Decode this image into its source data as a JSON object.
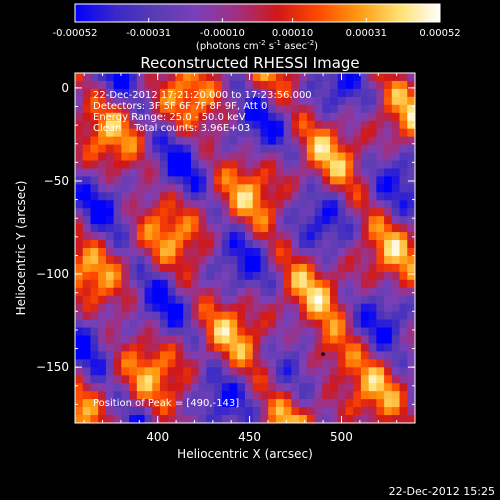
{
  "colorbar": {
    "ticks": [
      "-0.00052",
      "-0.00031",
      "-0.00010",
      "0.00010",
      "0.00031",
      "0.00052"
    ],
    "units_prefix": "(photons cm",
    "units_exp1": "-2",
    "units_mid": " s",
    "units_exp2": "-1",
    "units_mid2": " asec",
    "units_exp3": "-2",
    "units_suffix": ")",
    "colors": [
      "#0000ff",
      "#3a28c8",
      "#5a3cb4",
      "#7a40b8",
      "#a03080",
      "#d01818",
      "#ff4a00",
      "#ff9a10",
      "#ffe070",
      "#ffffff"
    ]
  },
  "chart_data": {
    "type": "heatmap",
    "title": "Reconstructed RHESSI Image",
    "xlabel": "Heliocentric X (arcsec)",
    "ylabel": "Heliocentric Y (arcsec)",
    "xlim": [
      355,
      540
    ],
    "ylim": [
      -180,
      8
    ],
    "x_ticks": [
      400,
      450,
      500
    ],
    "x_tick_labels": [
      "400",
      "450",
      "500"
    ],
    "y_ticks": [
      0,
      -50,
      -100,
      -150
    ],
    "y_tick_labels": [
      "0",
      "−50",
      "−100",
      "−150"
    ],
    "value_range": [
      -0.00052,
      0.00052
    ],
    "peak": [
      490,
      -143
    ],
    "annotations": [
      "22-Dec-2012 17:21:20.000 to 17:23:56.000",
      "Detectors: 3F 5F 6F 7F 8F 9F, Att 0",
      "Energy Range: 25.0 - 50.0 keV",
      "Clean    Total counts: 3.96E+03",
      "Position of Peak = [490,-143]"
    ]
  },
  "footer": {
    "timestamp": "22-Dec-2012 15:25"
  }
}
